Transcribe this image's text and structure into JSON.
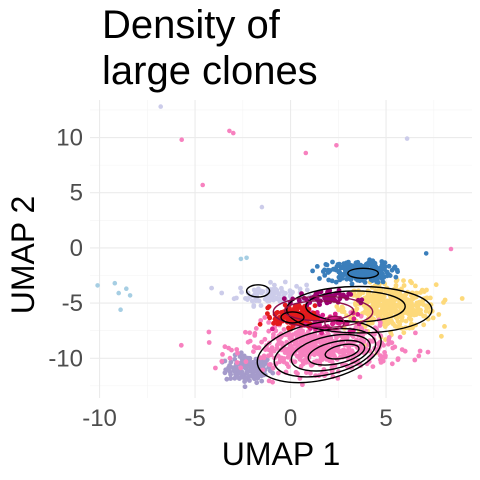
{
  "chart_data": {
    "type": "scatter",
    "title_lines": [
      "Density of",
      "large clones"
    ],
    "xlabel": "UMAP 1",
    "ylabel": "UMAP 2",
    "xlim": [
      -10.5,
      9.5
    ],
    "ylim": [
      -13.6,
      13.4
    ],
    "x_ticks": [
      -10,
      -5,
      0,
      5
    ],
    "y_ticks": [
      -10,
      -5,
      0,
      5,
      10
    ],
    "x_tick_labels": [
      "-10",
      "-5",
      "0",
      "5"
    ],
    "y_tick_labels": [
      "-10",
      "-5",
      "0",
      "5",
      "10"
    ],
    "grid": true,
    "legend": "none",
    "clusters": [
      {
        "color": "#a59bcb",
        "cx": -2.2,
        "cy": -11.0,
        "sx": 1.0,
        "sy": 1.0,
        "n": 140
      },
      {
        "color": "#ccccea",
        "cx": -1.0,
        "cy": -4.2,
        "sx": 1.5,
        "sy": 0.8,
        "n": 110
      },
      {
        "color": "#fdd97a",
        "cx": 5.2,
        "cy": -5.4,
        "sx": 2.0,
        "sy": 1.7,
        "n": 420
      },
      {
        "color": "#3a7ebb",
        "cx": 3.6,
        "cy": -2.2,
        "sx": 1.4,
        "sy": 0.8,
        "n": 230
      },
      {
        "color": "#f781bf",
        "cx": 1.5,
        "cy": -9.0,
        "sx": 3.2,
        "sy": 1.8,
        "n": 520
      },
      {
        "color": "#d81e8a",
        "cx": 1.5,
        "cy": -6.6,
        "sx": 1.6,
        "sy": 0.8,
        "n": 70
      },
      {
        "color": "#9b0070",
        "cx": 1.5,
        "cy": -4.6,
        "sx": 1.3,
        "sy": 0.6,
        "n": 60
      },
      {
        "color": "#e31a1c",
        "cx": 0.2,
        "cy": -6.2,
        "sx": 0.9,
        "sy": 0.8,
        "n": 140
      }
    ],
    "outliers": [
      {
        "x": -6.8,
        "y": 12.8,
        "color": "#ccccea"
      },
      {
        "x": -5.7,
        "y": 9.8,
        "color": "#f781bf"
      },
      {
        "x": -3.2,
        "y": 10.6,
        "color": "#f781bf"
      },
      {
        "x": -3.0,
        "y": 10.4,
        "color": "#f781bf"
      },
      {
        "x": 0.8,
        "y": 8.6,
        "color": "#f781bf"
      },
      {
        "x": 2.4,
        "y": 9.3,
        "color": "#f781bf"
      },
      {
        "x": 6.1,
        "y": 9.9,
        "color": "#ccccea"
      },
      {
        "x": -4.6,
        "y": 5.7,
        "color": "#f781bf"
      },
      {
        "x": -1.5,
        "y": 3.7,
        "color": "#ccccea"
      },
      {
        "x": -10.1,
        "y": -3.4,
        "color": "#a6cee3"
      },
      {
        "x": -9.2,
        "y": -3.2,
        "color": "#a6cee3"
      },
      {
        "x": -9.0,
        "y": -4.1,
        "color": "#a6cee3"
      },
      {
        "x": -8.6,
        "y": -3.7,
        "color": "#a6cee3"
      },
      {
        "x": -8.4,
        "y": -4.3,
        "color": "#a6cee3"
      },
      {
        "x": -8.9,
        "y": -5.6,
        "color": "#a6cee3"
      },
      {
        "x": -2.6,
        "y": -1.0,
        "color": "#a6cee3"
      },
      {
        "x": -2.3,
        "y": -0.9,
        "color": "#a6cee3"
      },
      {
        "x": 7.1,
        "y": -0.5,
        "color": "#3a7ebb"
      },
      {
        "x": 8.4,
        "y": -0.1,
        "color": "#f781bf"
      }
    ],
    "contours": [
      {
        "color": "#000000",
        "cx": 1.5,
        "cy": -9.4,
        "rx": 3.3,
        "ry": 2.6,
        "rot": -12
      },
      {
        "color": "#000000",
        "cx": 1.8,
        "cy": -9.5,
        "rx": 2.7,
        "ry": 2.0,
        "rot": -12
      },
      {
        "color": "#000000",
        "cx": 2.1,
        "cy": -9.5,
        "rx": 2.1,
        "ry": 1.5,
        "rot": -12
      },
      {
        "color": "#000000",
        "cx": 2.4,
        "cy": -9.5,
        "rx": 1.5,
        "ry": 1.0,
        "rot": -12
      },
      {
        "color": "#000000",
        "cx": 2.7,
        "cy": -9.4,
        "rx": 0.9,
        "ry": 0.6,
        "rot": -12
      },
      {
        "color": "#000000",
        "cx": 3.6,
        "cy": -5.6,
        "rx": 3.8,
        "ry": 2.1,
        "rot": 0
      },
      {
        "color": "#000000",
        "cx": 3.4,
        "cy": -5.3,
        "rx": 2.6,
        "ry": 1.4,
        "rot": 0
      },
      {
        "color": "#000000",
        "cx": 3.8,
        "cy": -2.3,
        "rx": 0.8,
        "ry": 0.45,
        "rot": 0
      },
      {
        "color": "#000000",
        "cx": -1.7,
        "cy": -3.9,
        "rx": 0.6,
        "ry": 0.55,
        "rot": 0
      },
      {
        "color": "#8b0f4c",
        "cx": 1.7,
        "cy": -5.8,
        "rx": 2.6,
        "ry": 1.4,
        "rot": 0
      },
      {
        "color": "#8b0f4c",
        "cx": 1.5,
        "cy": -5.7,
        "rx": 1.8,
        "ry": 0.9,
        "rot": 0
      },
      {
        "color": "#8b0f4c",
        "cx": 2.3,
        "cy": -6.8,
        "rx": 0.5,
        "ry": 0.6,
        "rot": 0
      },
      {
        "color": "#000000",
        "cx": 0.1,
        "cy": -6.3,
        "rx": 0.6,
        "ry": 0.5,
        "rot": 0
      }
    ]
  }
}
